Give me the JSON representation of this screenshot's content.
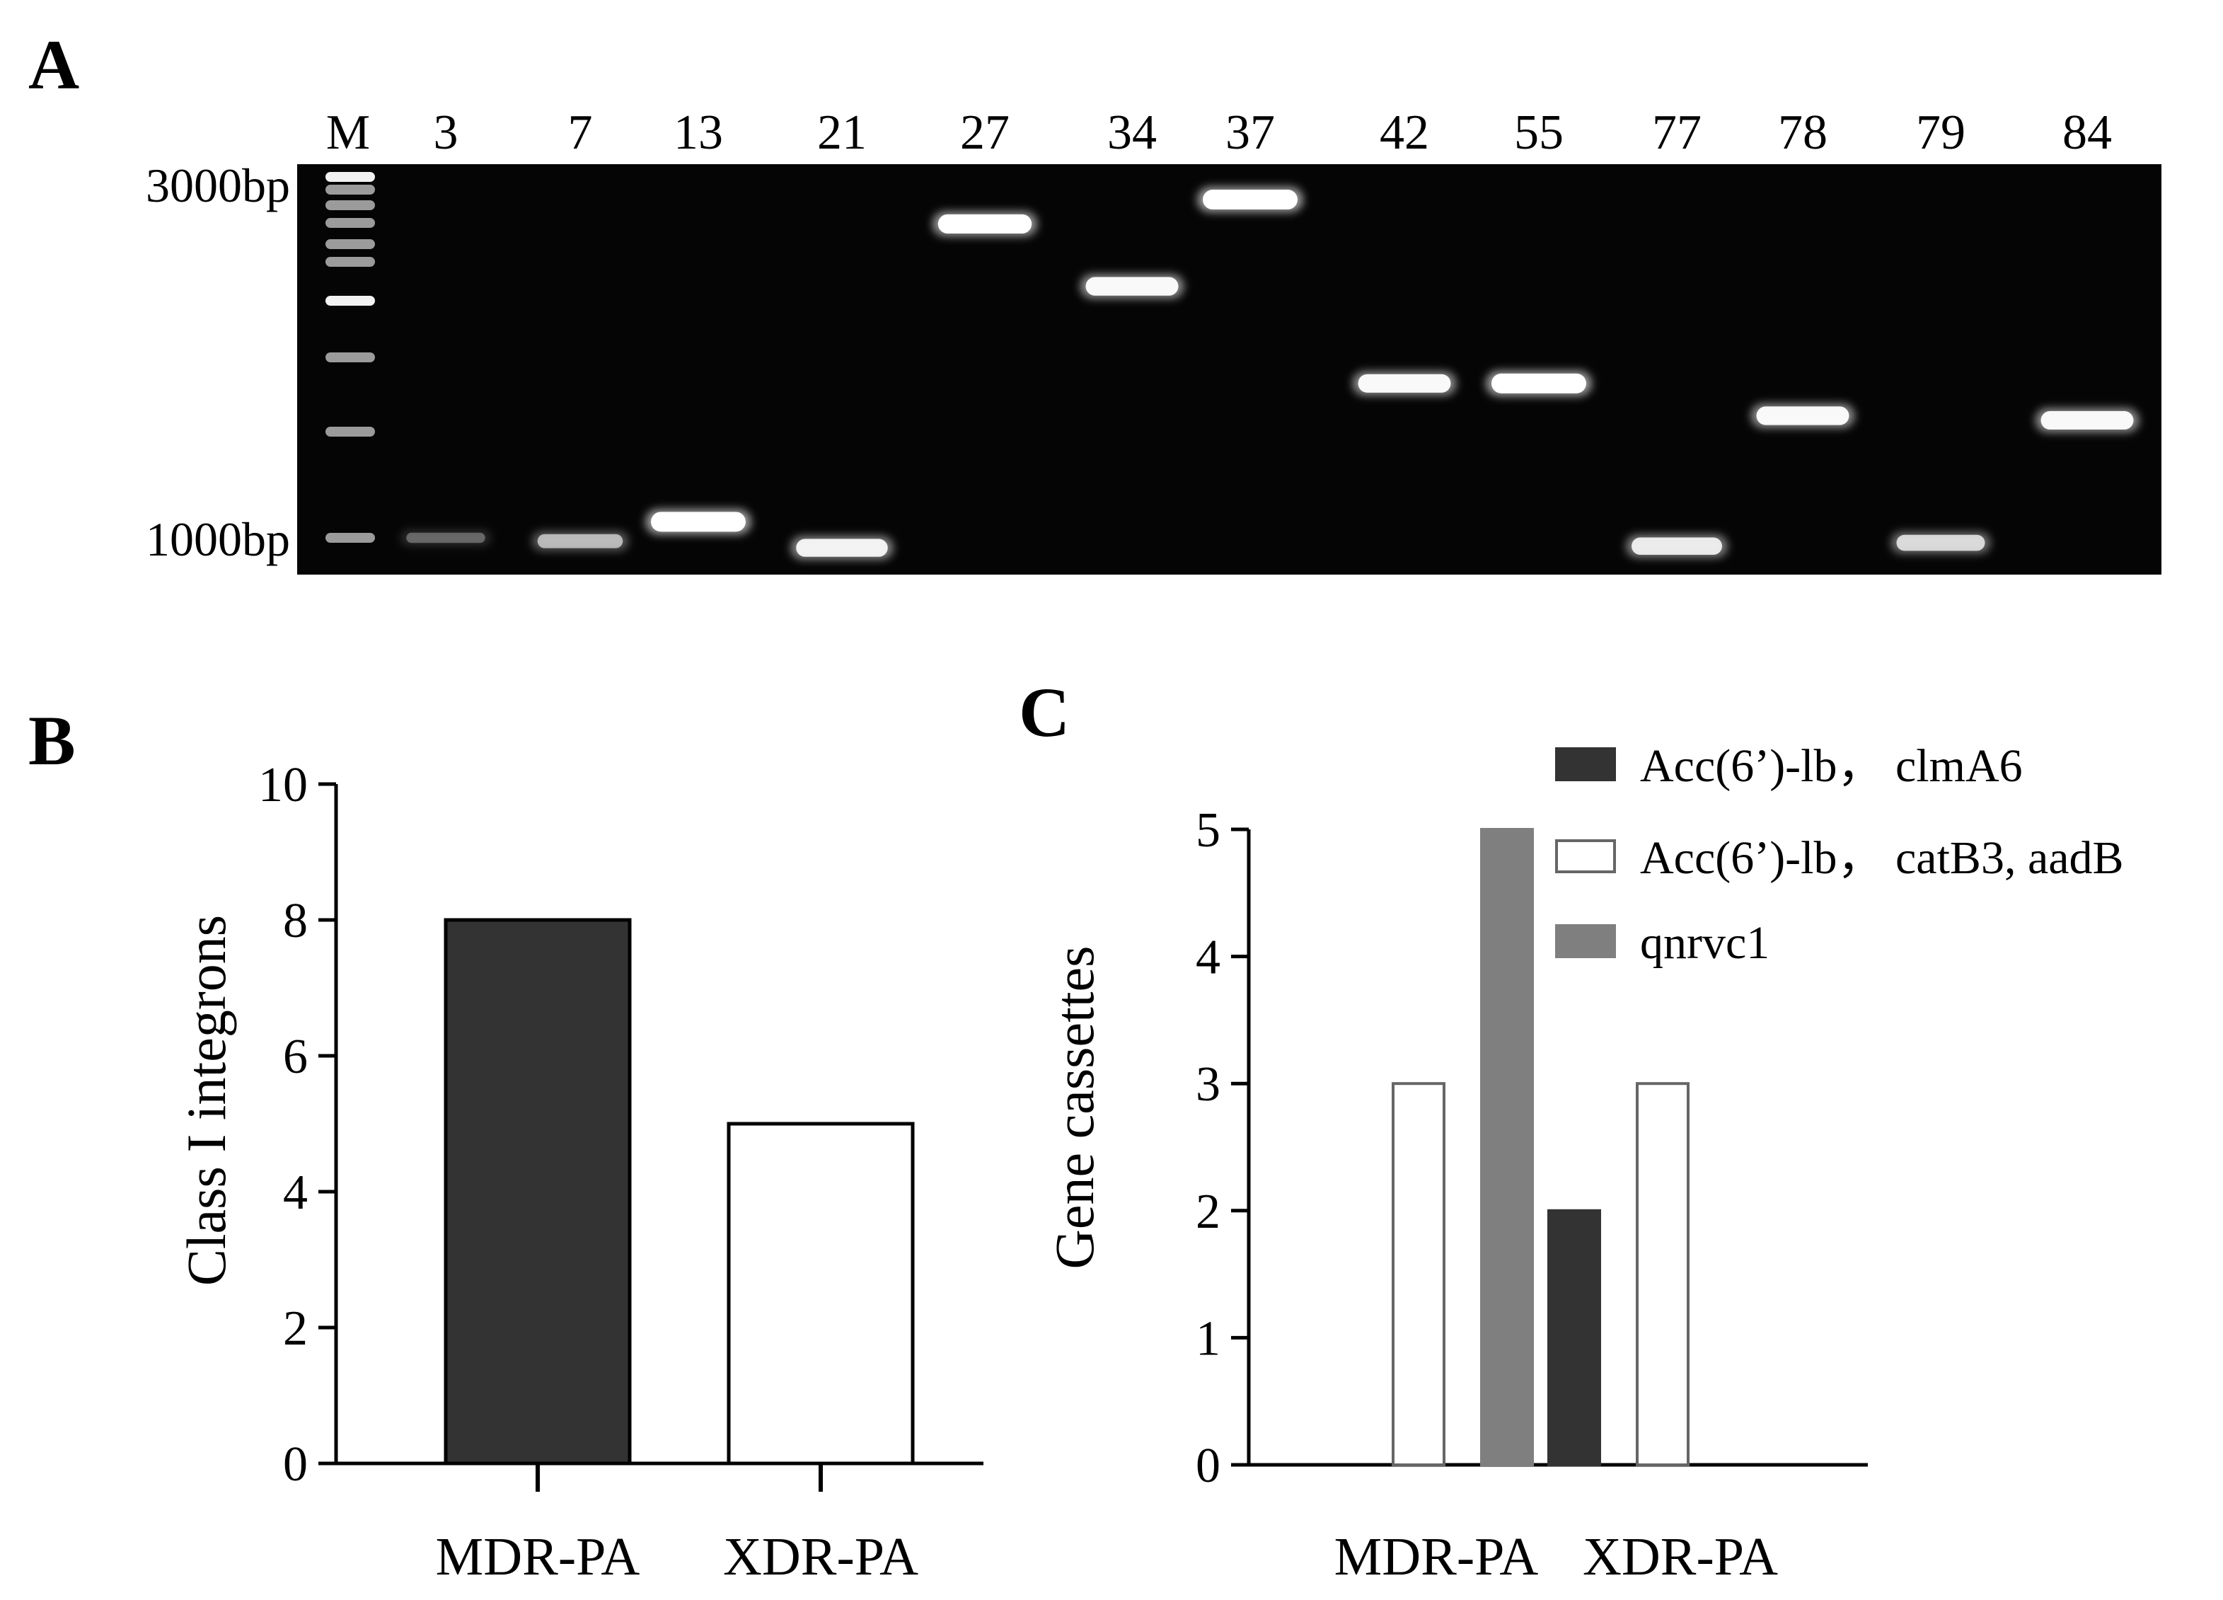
{
  "panels": {
    "A": {
      "letter": "A"
    },
    "B": {
      "letter": "B"
    },
    "C": {
      "letter": "C"
    }
  },
  "gel": {
    "marker_label": "M",
    "size_labels": [
      "3000bp",
      "1000bp"
    ],
    "lanes": [
      {
        "label": "3",
        "band_bp": 1000,
        "intensity": 0.25
      },
      {
        "label": "7",
        "band_bp": 990,
        "intensity": 0.55
      },
      {
        "label": "13",
        "band_bp": 1050,
        "intensity": 1.0
      },
      {
        "label": "21",
        "band_bp": 970,
        "intensity": 0.85
      },
      {
        "label": "27",
        "band_bp": 2600,
        "intensity": 0.95
      },
      {
        "label": "34",
        "band_bp": 2150,
        "intensity": 0.9
      },
      {
        "label": "37",
        "band_bp": 2800,
        "intensity": 1.0
      },
      {
        "label": "42",
        "band_bp": 1600,
        "intensity": 0.9
      },
      {
        "label": "55",
        "band_bp": 1600,
        "intensity": 1.0
      },
      {
        "label": "77",
        "band_bp": 975,
        "intensity": 0.8
      },
      {
        "label": "78",
        "band_bp": 1450,
        "intensity": 0.9
      },
      {
        "label": "79",
        "band_bp": 985,
        "intensity": 0.7
      },
      {
        "label": "84",
        "band_bp": 1430,
        "intensity": 0.9
      }
    ]
  },
  "chart_data": [
    {
      "panel": "B",
      "type": "bar",
      "categories": [
        "MDR-PA",
        "XDR-PA"
      ],
      "values": [
        8,
        5
      ],
      "bar_colors": [
        "#333333",
        "#ffffff"
      ],
      "ylabel": "Class I integrons",
      "xlabel": "",
      "ylim": [
        0,
        10
      ],
      "yticks": [
        0,
        2,
        4,
        6,
        8,
        10
      ],
      "grid": false
    },
    {
      "panel": "C",
      "type": "bar",
      "categories": [
        "MDR-PA",
        "XDR-PA"
      ],
      "series": [
        {
          "name": "Acc(6’)-lb， clmA6",
          "values": [
            0,
            2
          ],
          "color": "#333333"
        },
        {
          "name": "Acc(6’)-lb， catB3, aadB",
          "values": [
            3,
            3
          ],
          "color": "#ffffff"
        },
        {
          "name": "qnrvc1",
          "values": [
            5,
            0
          ],
          "color": "#7f7f7f"
        }
      ],
      "ylabel": "Gene cassettes",
      "xlabel": "",
      "ylim": [
        0,
        5
      ],
      "yticks": [
        0,
        1,
        2,
        3,
        4,
        5
      ],
      "legend_position": "top-right",
      "grid": false
    }
  ]
}
